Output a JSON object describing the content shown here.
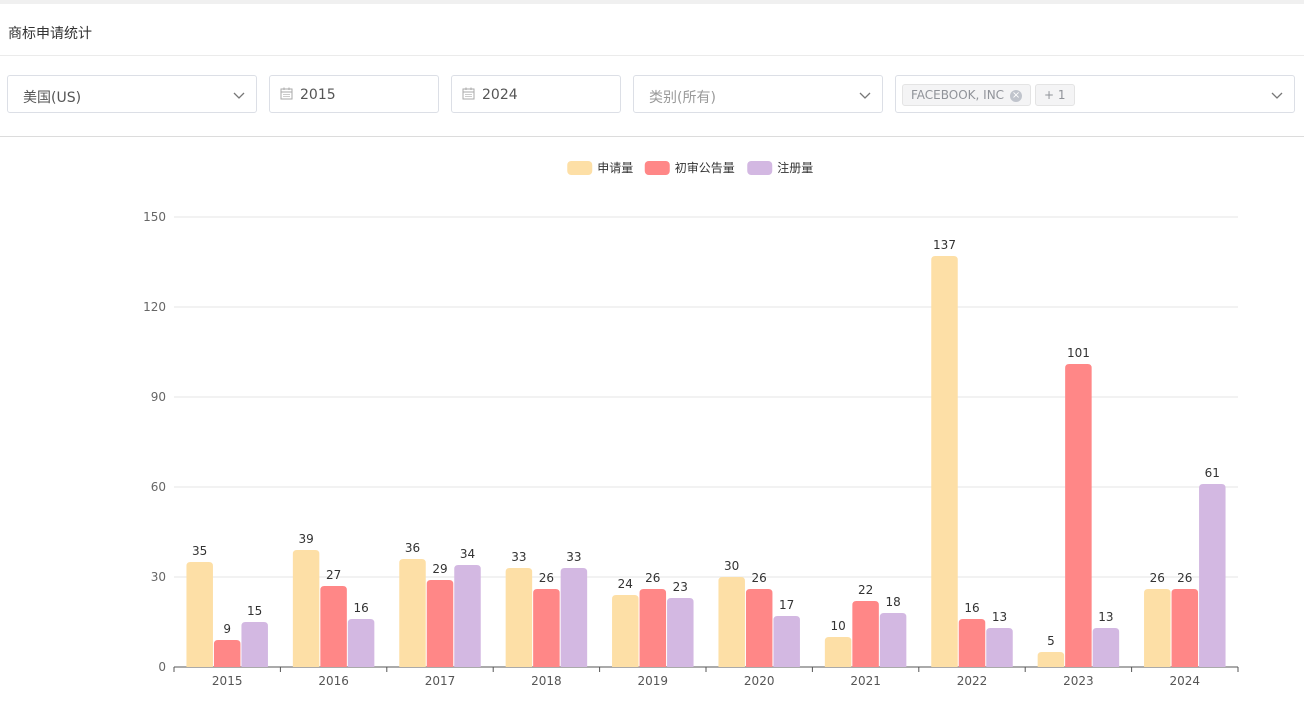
{
  "header": {
    "title": "商标申请统计"
  },
  "filters": {
    "country": "美国(US)",
    "year_start": "2015",
    "year_end": "2024",
    "category_placeholder": "类别(所有)",
    "applicant_tag": "FACEBOOK, INC",
    "applicant_more": "+ 1"
  },
  "chart_data": {
    "type": "bar",
    "categories": [
      "2015",
      "2016",
      "2017",
      "2018",
      "2019",
      "2020",
      "2021",
      "2022",
      "2023",
      "2024"
    ],
    "series": [
      {
        "name": "申请量",
        "color": "#fddfa6",
        "values": [
          35,
          39,
          36,
          33,
          24,
          30,
          10,
          137,
          5,
          26
        ]
      },
      {
        "name": "初审公告量",
        "color": "#ff8787",
        "values": [
          9,
          27,
          29,
          26,
          26,
          26,
          22,
          16,
          101,
          26
        ]
      },
      {
        "name": "注册量",
        "color": "#d3b8e2",
        "values": [
          15,
          16,
          34,
          33,
          23,
          17,
          18,
          13,
          13,
          61
        ]
      }
    ],
    "ylim": [
      0,
      150
    ],
    "yticks": [
      0,
      30,
      60,
      90,
      120,
      150
    ],
    "legend_position": "top-center",
    "grid": true
  }
}
